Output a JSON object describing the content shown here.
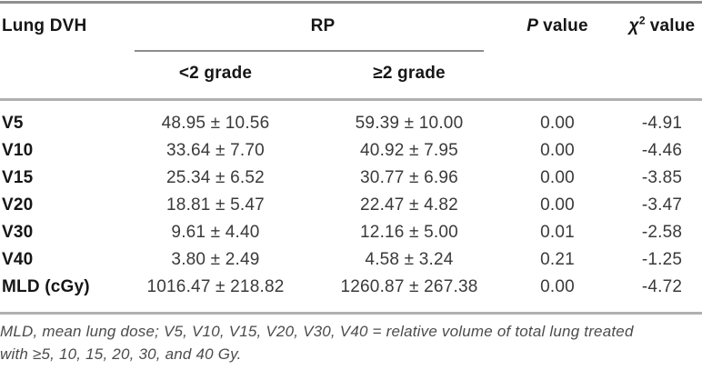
{
  "table": {
    "col1_header": "Lung DVH",
    "group_header": "RP",
    "subheaders": {
      "lt2": "<2 grade",
      "ge2": "≥2 grade"
    },
    "p_header": {
      "symbol": "P",
      "rest": "value"
    },
    "chi_header": {
      "symbol": "χ",
      "sup": "2",
      "rest": "value"
    },
    "rows": [
      {
        "label": "V5",
        "lt2": "48.95 ± 10.56",
        "ge2": "59.39 ± 10.00",
        "p": "0.00",
        "chi": "-4.91"
      },
      {
        "label": "V10",
        "lt2": "33.64 ± 7.70",
        "ge2": "40.92 ± 7.95",
        "p": "0.00",
        "chi": "-4.46"
      },
      {
        "label": "V15",
        "lt2": "25.34 ± 6.52",
        "ge2": "30.77 ± 6.96",
        "p": "0.00",
        "chi": "-3.85"
      },
      {
        "label": "V20",
        "lt2": "18.81 ± 5.47",
        "ge2": "22.47 ± 4.82",
        "p": "0.00",
        "chi": "-3.47"
      },
      {
        "label": "V30",
        "lt2": "9.61 ± 4.40",
        "ge2": "12.16 ± 5.00",
        "p": "0.01",
        "chi": "-2.58"
      },
      {
        "label": "V40",
        "lt2": "3.80 ± 2.49",
        "ge2": "4.58 ± 3.24",
        "p": "0.21",
        "chi": "-1.25"
      },
      {
        "label": "MLD (cGy)",
        "lt2": "1016.47 ± 218.82",
        "ge2": "1260.87 ± 267.38",
        "p": "0.00",
        "chi": "-4.72"
      }
    ],
    "footnote_lines": {
      "line1": "MLD, mean lung dose; V5, V10, V15, V20, V30, V40 = relative volume of total lung treated",
      "line2": "with ≥5, 10, 15, 20, 30, and 40 Gy."
    }
  },
  "colors": {
    "rule_dark": "#8f8f8f",
    "rule_light": "#b0b0b0",
    "header_text": "#161616",
    "value_text": "#3a3a3a",
    "footnote_text": "#4c4c4c",
    "background": "#ffffff"
  }
}
